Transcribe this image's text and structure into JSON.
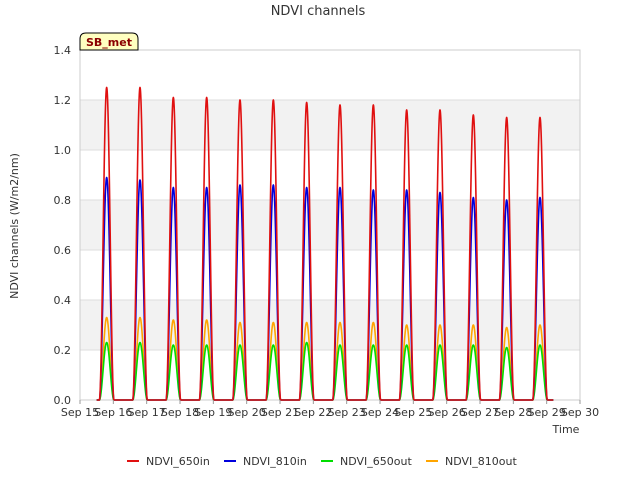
{
  "chart_data": {
    "type": "line",
    "title": "NDVI channels",
    "xlabel": "Time",
    "ylabel": "NDVI channels (W/m2/nm)",
    "badge": "SB_met",
    "ylim": [
      0.0,
      1.4
    ],
    "yticks": [
      "0.0",
      "0.2",
      "0.4",
      "0.6",
      "0.8",
      "1.0",
      "1.2",
      "1.4"
    ],
    "xlim_days": [
      15,
      30
    ],
    "xticks": [
      "Sep 15",
      "Sep 16",
      "Sep 17",
      "Sep 18",
      "Sep 19",
      "Sep 20",
      "Sep 21",
      "Sep 22",
      "Sep 23",
      "Sep 24",
      "Sep 25",
      "Sep 26",
      "Sep 27",
      "Sep 28",
      "Sep 29",
      "Sep 30"
    ],
    "peak_days": [
      15.8,
      16.8,
      17.8,
      18.8,
      19.8,
      20.8,
      21.8,
      22.8,
      23.8,
      24.8,
      25.8,
      26.8,
      27.8,
      28.8
    ],
    "series": [
      {
        "name": "NDVI_650in",
        "color": "#e01010",
        "peaks": [
          1.25,
          1.25,
          1.21,
          1.21,
          1.2,
          1.2,
          1.19,
          1.18,
          1.18,
          1.16,
          1.16,
          1.14,
          1.13,
          1.13
        ]
      },
      {
        "name": "NDVI_810in",
        "color": "#0000dd",
        "peaks": [
          0.89,
          0.88,
          0.85,
          0.85,
          0.86,
          0.86,
          0.85,
          0.85,
          0.84,
          0.84,
          0.83,
          0.81,
          0.8,
          0.81
        ]
      },
      {
        "name": "NDVI_650out",
        "color": "#00dd00",
        "peaks": [
          0.23,
          0.23,
          0.22,
          0.22,
          0.22,
          0.22,
          0.23,
          0.22,
          0.22,
          0.22,
          0.22,
          0.22,
          0.21,
          0.22
        ]
      },
      {
        "name": "NDVI_810out",
        "color": "#ffa500",
        "peaks": [
          0.33,
          0.33,
          0.32,
          0.32,
          0.31,
          0.31,
          0.31,
          0.31,
          0.31,
          0.3,
          0.3,
          0.3,
          0.29,
          0.3
        ]
      }
    ]
  }
}
